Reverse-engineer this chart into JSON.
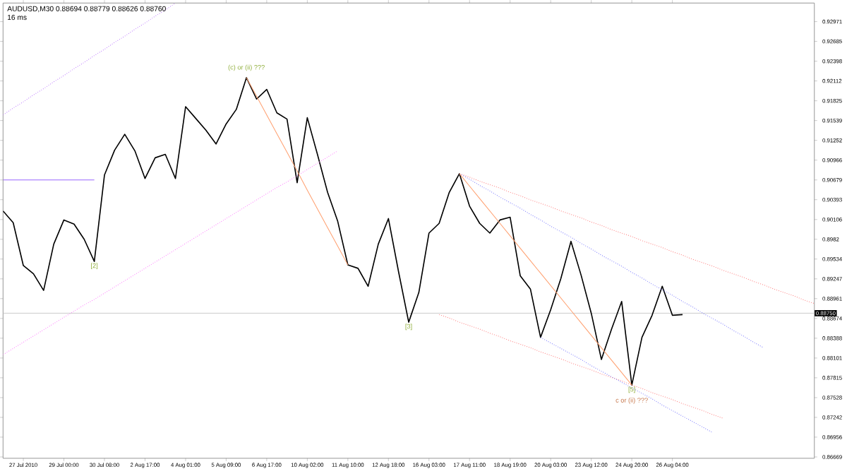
{
  "chart_data": {
    "type": "line",
    "title": "AUDUSD,M30  0.88694 0.88779 0.88626 0.88760",
    "subtitle": "16 ms",
    "categories": [
      null,
      null,
      "27 Jul 2010",
      null,
      null,
      null,
      "29 Jul 00:00",
      null,
      null,
      null,
      "30 Jul 08:00",
      null,
      null,
      null,
      "2 Aug 17:00",
      null,
      null,
      null,
      "4 Aug 01:00",
      null,
      null,
      null,
      "5 Aug 09:00",
      null,
      null,
      null,
      "6 Aug 17:00",
      null,
      null,
      null,
      "10 Aug 02:00",
      null,
      null,
      null,
      "11 Aug 10:00",
      null,
      null,
      null,
      "12 Aug 18:00",
      null,
      null,
      null,
      "16 Aug 03:00",
      null,
      null,
      null,
      "17 Aug 11:00",
      null,
      null,
      null,
      "18 Aug 19:00",
      null,
      null,
      null,
      "20 Aug 03:00",
      null,
      null,
      null,
      "23 Aug 12:00",
      null,
      null,
      null,
      "24 Aug 20:00",
      null,
      null,
      null,
      "26 Aug 04:00",
      null,
      null,
      null,
      null,
      null,
      null,
      null,
      null,
      null,
      null,
      null,
      null,
      null,
      null
    ],
    "ylim": [
      0.8665,
      0.9324
    ],
    "yticks": [
      0.92971,
      0.92685,
      0.92398,
      0.92112,
      0.91825,
      0.91539,
      0.91252,
      0.90966,
      0.90679,
      0.90393,
      0.90106,
      0.8982,
      0.89534,
      0.89247,
      0.88961,
      0.88674,
      0.88388,
      0.88101,
      0.87815,
      0.87528,
      0.87242,
      0.86956,
      0.86669
    ],
    "grid": false,
    "marker": "none",
    "ref_lines": [
      {
        "axis": "y",
        "value": 0.8875,
        "label": "0.88750",
        "color": "#c0c0c0"
      }
    ],
    "series": [
      {
        "color": "#000000",
        "line_style": "solid",
        "values": [
          0.9023,
          0.9006,
          0.8944,
          0.8932,
          0.8908,
          0.8975,
          0.901,
          0.9004,
          0.8982,
          0.895,
          0.9075,
          0.9111,
          0.9134,
          0.911,
          0.907,
          0.91,
          0.9105,
          0.907,
          0.9174,
          0.9157,
          0.914,
          0.912,
          0.9149,
          0.917,
          0.9216,
          0.9185,
          0.9199,
          0.9165,
          0.9156,
          0.9064,
          0.9158,
          0.9105,
          0.905,
          0.9008,
          0.8945,
          0.894,
          0.8914,
          0.8975,
          0.9012,
          0.8935,
          0.8862,
          0.8905,
          0.8991,
          0.9005,
          0.905,
          0.9077,
          0.903,
          0.9005,
          0.8991,
          0.901,
          0.9014,
          0.8929,
          0.891,
          0.884,
          0.888,
          0.8925,
          0.8979,
          0.893,
          0.8875,
          0.8808,
          0.8852,
          0.8892,
          0.8771,
          0.884,
          0.8872,
          0.8914,
          0.8872,
          0.8873,
          null,
          null,
          null,
          null,
          null,
          null,
          null,
          null,
          null,
          null,
          null,
          null,
          null
        ]
      },
      {
        "color": "#ff8080",
        "line_style": "dotted",
        "values": [
          null,
          null,
          null,
          null,
          null,
          null,
          null,
          null,
          null,
          null,
          null,
          null,
          null,
          null,
          null,
          null,
          null,
          null,
          null,
          null,
          null,
          null,
          null,
          null,
          null,
          null,
          null,
          null,
          null,
          null,
          null,
          null,
          null,
          null,
          null,
          null,
          null,
          null,
          null,
          null,
          null,
          null,
          null,
          null,
          null,
          0.9077,
          0.9072,
          0.9066,
          0.9061,
          0.9056,
          0.905,
          0.9045,
          0.9039,
          0.9034,
          0.9029,
          0.9023,
          0.9018,
          0.9013,
          0.9007,
          0.9002,
          0.8996,
          0.8991,
          0.8986,
          0.898,
          0.8975,
          0.897,
          0.8964,
          0.8959,
          0.8953,
          0.8948,
          0.8943,
          0.8937,
          0.8932,
          0.8927,
          0.8921,
          0.8916,
          0.891,
          0.8905,
          0.89,
          0.8894,
          0.8889
        ]
      },
      {
        "color": "#8080ff",
        "line_style": "dotted",
        "values": [
          null,
          null,
          null,
          null,
          null,
          null,
          null,
          null,
          null,
          null,
          null,
          null,
          null,
          null,
          null,
          null,
          null,
          null,
          null,
          null,
          null,
          null,
          null,
          null,
          null,
          null,
          null,
          null,
          null,
          null,
          null,
          null,
          null,
          null,
          null,
          null,
          null,
          null,
          null,
          null,
          null,
          null,
          null,
          null,
          null,
          0.9077,
          0.9069,
          0.906,
          0.9052,
          0.9043,
          0.9035,
          0.9027,
          0.9018,
          0.901,
          0.9001,
          0.8993,
          0.8985,
          0.8976,
          0.8968,
          0.8959,
          0.8951,
          0.8943,
          0.8934,
          0.8926,
          0.8917,
          0.8909,
          0.8901,
          0.8892,
          0.8884,
          0.8875,
          0.8867,
          0.8859,
          0.885,
          0.8842,
          0.8833,
          0.8825,
          null,
          null,
          null,
          null,
          null
        ]
      },
      {
        "color": "#ff8080",
        "line_style": "dotted",
        "values": [
          null,
          null,
          null,
          null,
          null,
          null,
          null,
          null,
          null,
          null,
          null,
          null,
          null,
          null,
          null,
          null,
          null,
          null,
          null,
          null,
          null,
          null,
          null,
          null,
          null,
          null,
          null,
          null,
          null,
          null,
          null,
          null,
          null,
          null,
          null,
          null,
          null,
          null,
          null,
          null,
          null,
          null,
          null,
          0.8873,
          0.8868,
          0.8862,
          0.8857,
          0.8852,
          0.8846,
          0.8841,
          0.8835,
          0.883,
          0.8825,
          0.8819,
          0.8814,
          0.8809,
          0.8803,
          0.8798,
          0.8793,
          0.8787,
          0.8782,
          0.8777,
          0.8771,
          0.8766,
          0.876,
          0.8755,
          0.875,
          0.8744,
          0.8739,
          0.8734,
          0.8728,
          0.8723,
          null,
          null,
          null,
          null,
          null,
          null,
          null,
          null,
          null
        ]
      },
      {
        "color": "#8080ff",
        "line_style": "dotted",
        "values": [
          null,
          null,
          null,
          null,
          null,
          null,
          null,
          null,
          null,
          null,
          null,
          null,
          null,
          null,
          null,
          null,
          null,
          null,
          null,
          null,
          null,
          null,
          null,
          null,
          null,
          null,
          null,
          null,
          null,
          null,
          null,
          null,
          null,
          null,
          null,
          null,
          null,
          null,
          null,
          null,
          null,
          null,
          null,
          null,
          null,
          null,
          null,
          null,
          null,
          null,
          null,
          null,
          null,
          0.884,
          0.8832,
          0.8824,
          0.8816,
          0.8808,
          0.8799,
          0.8791,
          0.8783,
          0.8775,
          0.8767,
          0.8759,
          0.8751,
          0.8742,
          0.8734,
          0.8726,
          0.8718,
          0.871,
          0.8702,
          null,
          null,
          null,
          null,
          null,
          null,
          null,
          null,
          null,
          null
        ]
      },
      {
        "color": "#ff80ff",
        "line_style": "dotted",
        "values": [
          0.8815,
          0.8824,
          0.8833,
          0.8842,
          0.8851,
          0.886,
          0.8869,
          0.8878,
          0.8887,
          0.8895,
          0.8904,
          0.8913,
          0.8922,
          0.8931,
          0.894,
          0.8949,
          0.8958,
          0.8967,
          0.8976,
          0.8985,
          0.8994,
          0.9003,
          0.9012,
          0.9021,
          0.903,
          0.9039,
          0.9048,
          0.9057,
          0.9065,
          0.9074,
          0.9083,
          0.9092,
          0.9101,
          0.911,
          null,
          null,
          null,
          null,
          null,
          null,
          null,
          null,
          null,
          null,
          null,
          null,
          null,
          null,
          null,
          null,
          null,
          null,
          null,
          null,
          null,
          null,
          null,
          null,
          null,
          null,
          null,
          null,
          null,
          null,
          null,
          null,
          null,
          null,
          null,
          null,
          null,
          null,
          null,
          null,
          null,
          null,
          null,
          null,
          null,
          null,
          null
        ]
      },
      {
        "color": "#c080ff",
        "line_style": "dotted",
        "values": [
          0.9162,
          0.9172,
          0.9181,
          0.9191,
          0.92,
          0.921,
          0.9219,
          0.9229,
          0.9238,
          0.9248,
          0.9257,
          0.9267,
          0.9276,
          0.9286,
          0.9295,
          0.9305,
          0.9314,
          0.9324,
          null,
          null,
          null,
          null,
          null,
          null,
          null,
          null,
          null,
          null,
          null,
          null,
          null,
          null,
          null,
          null,
          null,
          null,
          null,
          null,
          null,
          null,
          null,
          null,
          null,
          null,
          null,
          null,
          null,
          null,
          null,
          null,
          null,
          null,
          null,
          null,
          null,
          null,
          null,
          null,
          null,
          null,
          null,
          null,
          null,
          null,
          null,
          null,
          null,
          null,
          null,
          null,
          null,
          null,
          null,
          null,
          null,
          null,
          null,
          null,
          null,
          null,
          null
        ]
      },
      {
        "color": "#9966ff",
        "line_style": "solid",
        "values": [
          0.9068,
          0.9068,
          0.9068,
          0.9068,
          0.9068,
          0.9068,
          0.9068,
          0.9068,
          0.9068,
          0.9068,
          null,
          null,
          null,
          null,
          null,
          null,
          null,
          null,
          null,
          null,
          null,
          null,
          null,
          null,
          null,
          null,
          null,
          null,
          null,
          null,
          null,
          null,
          null,
          null,
          null,
          null,
          null,
          null,
          null,
          null,
          null,
          null,
          null,
          null,
          null,
          null,
          null,
          null,
          null,
          null,
          null,
          null,
          null,
          null,
          null,
          null,
          null,
          null,
          null,
          null,
          null,
          null,
          null,
          null,
          null,
          null,
          null,
          null,
          null,
          null,
          null,
          null,
          null,
          null,
          null,
          null,
          null,
          null,
          null,
          null,
          null
        ]
      },
      {
        "color": "#ffa070",
        "line_style": "solid",
        "values": [
          null,
          null,
          null,
          null,
          null,
          null,
          null,
          null,
          null,
          null,
          null,
          null,
          null,
          null,
          null,
          null,
          null,
          null,
          null,
          null,
          null,
          null,
          null,
          null,
          0.9216,
          0.9189,
          0.9162,
          0.9135,
          0.9108,
          0.9081,
          0.9053,
          0.9026,
          0.8999,
          0.8972,
          0.8945,
          null,
          null,
          null,
          null,
          null,
          null,
          null,
          null,
          null,
          null,
          null,
          null,
          null,
          null,
          null,
          null,
          null,
          null,
          null,
          null,
          null,
          null,
          null,
          null,
          null,
          null,
          null,
          null,
          null,
          null,
          null,
          null,
          null,
          null,
          null,
          null,
          null,
          null,
          null,
          null,
          null,
          null,
          null,
          null,
          null,
          null
        ]
      },
      {
        "color": "#ffa070",
        "line_style": "solid",
        "values": [
          null,
          null,
          null,
          null,
          null,
          null,
          null,
          null,
          null,
          null,
          null,
          null,
          null,
          null,
          null,
          null,
          null,
          null,
          null,
          null,
          null,
          null,
          null,
          null,
          null,
          null,
          null,
          null,
          null,
          null,
          null,
          null,
          null,
          null,
          null,
          null,
          null,
          null,
          null,
          null,
          null,
          null,
          null,
          null,
          null,
          0.9077,
          0.9059,
          0.9041,
          0.9023,
          0.9005,
          0.8987,
          0.8969,
          0.8951,
          0.8933,
          0.8915,
          0.8897,
          0.8879,
          0.8861,
          0.8843,
          0.8825,
          0.8807,
          0.8789,
          0.8771,
          null,
          null,
          null,
          null,
          null,
          null,
          null,
          null,
          null,
          null,
          null,
          null,
          null,
          null,
          null,
          null,
          null,
          null
        ]
      }
    ],
    "annotations": [
      {
        "text": "(c) or (ii) ???",
        "y": 0.9216
      },
      {
        "text": "[2]",
        "y": 0.895
      },
      {
        "text": "[3]",
        "y": 0.8862
      },
      {
        "text": "[5]",
        "y": 0.8771
      },
      "c or (ii) ???"
    ]
  }
}
